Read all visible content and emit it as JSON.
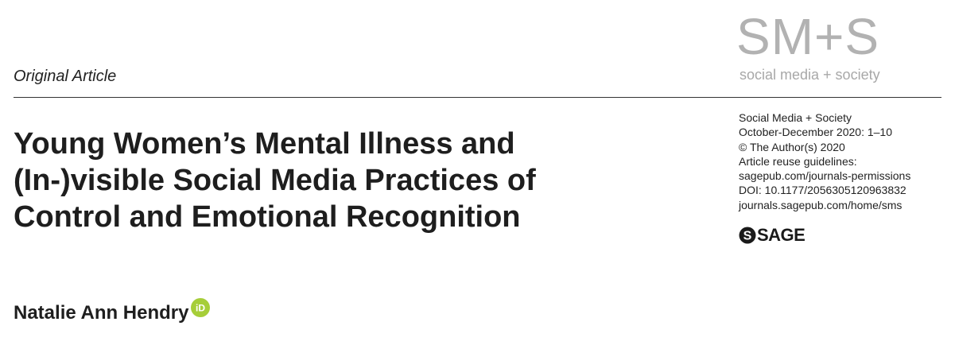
{
  "header": {
    "article_type": "Original Article"
  },
  "journal_logo": {
    "main": "SM+S",
    "subtitle": "social media + society",
    "color": "#b2b2b2"
  },
  "title_lines": [
    "Young Women’s Mental Illness and",
    "(In-)visible Social Media Practices of",
    "Control and Emotional Recognition"
  ],
  "meta": {
    "journal": "Social Media + Society",
    "issue": "October-December 2020: 1–10",
    "copyright": "© The Author(s) 2020",
    "reuse_label": "Article reuse guidelines:",
    "reuse_url": "sagepub.com/journals-permissions",
    "doi": "DOI: 10.1177/2056305120963832",
    "journal_url": "journals.sagepub.com/home/sms"
  },
  "publisher_logo": {
    "text": "SAGE",
    "icon": "sage-s-icon"
  },
  "author": {
    "name": "Natalie Ann Hendry",
    "orcid_icon": "orcid-icon",
    "orcid_label": "iD",
    "orcid_color": "#a6ce39"
  }
}
